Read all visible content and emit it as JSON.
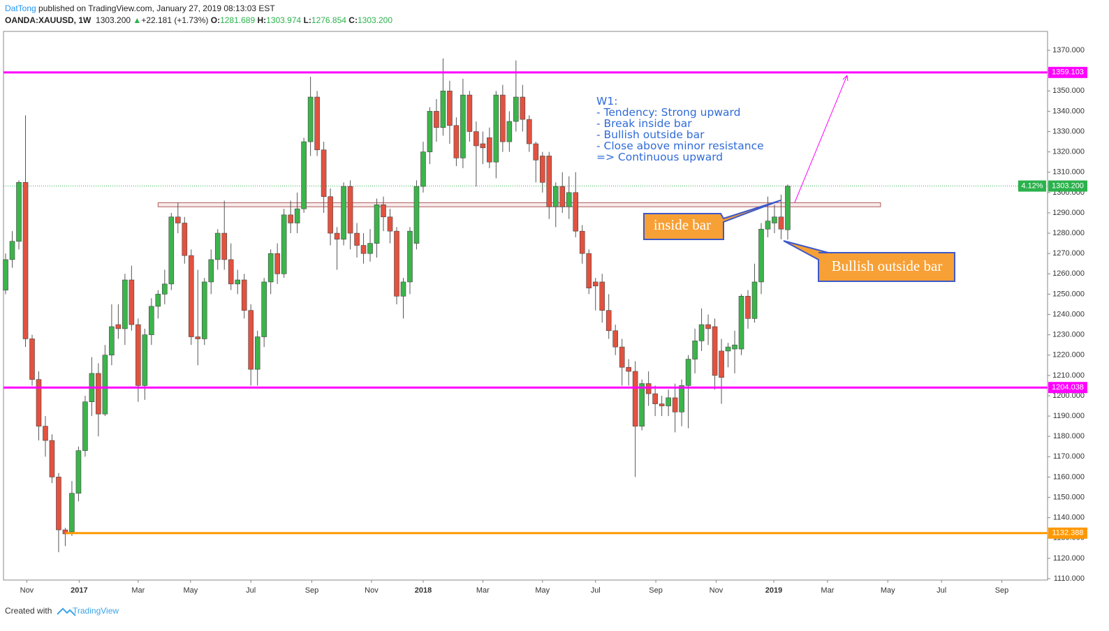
{
  "header": {
    "author": "DatTong",
    "published": "published on TradingView.com, January 27, 2019 08:13:03 EST",
    "symbol": "OANDA:XAUUSD, 1W",
    "last": "1303.200",
    "arrow": "▲",
    "change": "+22.181 (+1.73%)",
    "ohlc": [
      {
        "label": "O:",
        "value": "1281.689"
      },
      {
        "label": "H:",
        "value": "1303.974"
      },
      {
        "label": "L:",
        "value": "1276.854"
      },
      {
        "label": "C:",
        "value": "1303.200"
      }
    ]
  },
  "footer": {
    "text": "Created with",
    "brand": "TradingView"
  },
  "chart_data": {
    "type": "candlestick",
    "up_color": "#3cb44b",
    "down_color": "#e2523f",
    "open": [
      1252,
      1267,
      1276,
      1305,
      1228,
      1208,
      1185,
      1178,
      1160,
      1134,
      1133,
      1152,
      1173,
      1197,
      1211,
      1191,
      1220,
      1235,
      1233,
      1257,
      1235,
      1205,
      1230,
      1244,
      1250,
      1255,
      1288,
      1285,
      1269,
      1229,
      1228,
      1256,
      1267,
      1280,
      1267,
      1255,
      1257,
      1242,
      1213,
      1229,
      1256,
      1270,
      1260,
      1289,
      1285,
      1292,
      1325,
      1347,
      1321,
      1298,
      1280,
      1277,
      1303,
      1280,
      1274,
      1270,
      1275,
      1294,
      1288,
      1281,
      1249,
      1256,
      1275,
      1303,
      1320,
      1340,
      1332,
      1350,
      1333,
      1317,
      1348,
      1330,
      1324,
      1327,
      1315,
      1348,
      1325,
      1335,
      1347,
      1336,
      1324,
      1318,
      1318,
      1293,
      1303,
      1293,
      1300,
      1281,
      1270,
      1256,
      1256,
      1242,
      1232,
      1224,
      1214,
      1212,
      1185,
      1206,
      1201,
      1196,
      1195,
      1199,
      1192,
      1205,
      1218,
      1227,
      1235,
      1234,
      1222,
      1222,
      1223,
      1223,
      1249,
      1238,
      1256,
      1282,
      1285,
      1288,
      1281.689
    ],
    "high": [
      1270,
      1281,
      1306,
      1338,
      1230,
      1212,
      1190,
      1181,
      1162,
      1135,
      1158,
      1175,
      1200,
      1219,
      1216,
      1225,
      1245,
      1245,
      1260,
      1264,
      1238,
      1233,
      1248,
      1252,
      1262,
      1290,
      1295,
      1288,
      1272,
      1262,
      1258,
      1272,
      1282,
      1296,
      1275,
      1262,
      1260,
      1245,
      1232,
      1258,
      1272,
      1275,
      1292,
      1296,
      1300,
      1327,
      1357,
      1350,
      1325,
      1302,
      1283,
      1305,
      1306,
      1285,
      1280,
      1282,
      1297,
      1298,
      1292,
      1283,
      1258,
      1283,
      1306,
      1325,
      1342,
      1346,
      1366,
      1355,
      1337,
      1356,
      1350,
      1335,
      1330,
      1332,
      1350,
      1353,
      1340,
      1365,
      1353,
      1338,
      1325,
      1320,
      1320,
      1305,
      1310,
      1308,
      1310,
      1284,
      1272,
      1258,
      1260,
      1250,
      1235,
      1228,
      1218,
      1217,
      1208,
      1212,
      1205,
      1200,
      1203,
      1206,
      1208,
      1220,
      1233,
      1243,
      1240,
      1238,
      1228,
      1226,
      1232,
      1250,
      1252,
      1265,
      1285,
      1298,
      1294,
      1299,
      1303.974
    ],
    "low": [
      1250,
      1263,
      1272,
      1224,
      1205,
      1178,
      1170,
      1157,
      1123,
      1126,
      1131,
      1148,
      1170,
      1190,
      1180,
      1190,
      1215,
      1228,
      1225,
      1232,
      1197,
      1198,
      1225,
      1238,
      1245,
      1252,
      1280,
      1265,
      1225,
      1215,
      1225,
      1250,
      1262,
      1262,
      1252,
      1250,
      1238,
      1205,
      1205,
      1224,
      1250,
      1255,
      1258,
      1280,
      1280,
      1290,
      1318,
      1318,
      1290,
      1274,
      1262,
      1274,
      1272,
      1268,
      1265,
      1266,
      1268,
      1281,
      1275,
      1245,
      1238,
      1250,
      1272,
      1300,
      1314,
      1325,
      1328,
      1324,
      1313,
      1312,
      1325,
      1303,
      1314,
      1312,
      1307,
      1320,
      1320,
      1330,
      1330,
      1320,
      1305,
      1300,
      1287,
      1283,
      1290,
      1287,
      1278,
      1265,
      1250,
      1242,
      1236,
      1228,
      1220,
      1205,
      1205,
      1160,
      1183,
      1195,
      1190,
      1190,
      1190,
      1182,
      1185,
      1184,
      1211,
      1222,
      1225,
      1203,
      1196,
      1214,
      1211,
      1220,
      1233,
      1236,
      1250,
      1278,
      1280,
      1277,
      1276.854
    ],
    "close": [
      1267,
      1276,
      1305,
      1228,
      1208,
      1185,
      1178,
      1160,
      1134,
      1132,
      1152,
      1173,
      1197,
      1211,
      1191,
      1220,
      1234,
      1233,
      1257,
      1235,
      1205,
      1230,
      1244,
      1250,
      1255,
      1288,
      1285,
      1269,
      1229,
      1228,
      1256,
      1267,
      1280,
      1267,
      1255,
      1257,
      1242,
      1213,
      1229,
      1256,
      1270,
      1260,
      1289,
      1285,
      1292,
      1325,
      1347,
      1321,
      1298,
      1280,
      1277,
      1303,
      1280,
      1274,
      1270,
      1275,
      1294,
      1288,
      1281,
      1249,
      1256,
      1281,
      1303,
      1320,
      1340,
      1332,
      1350,
      1333,
      1317,
      1348,
      1330,
      1323,
      1322,
      1315,
      1348,
      1325,
      1335,
      1347,
      1336,
      1324,
      1316,
      1305,
      1293,
      1303,
      1293,
      1300,
      1281,
      1270,
      1253,
      1254,
      1242,
      1232,
      1224,
      1214,
      1212,
      1185,
      1206,
      1201,
      1196,
      1195,
      1199,
      1192,
      1205,
      1218,
      1227,
      1235,
      1233,
      1210,
      1209,
      1224,
      1225,
      1249,
      1238,
      1256,
      1282,
      1286,
      1288,
      1282,
      1303.2
    ],
    "xlim": [
      -0.32,
      157.2
    ],
    "xticks": [
      {
        "value": 3.2,
        "label": "Nov"
      },
      {
        "value": 11.1,
        "label": "2017"
      },
      {
        "value": 20,
        "label": "Mar"
      },
      {
        "value": 27.9,
        "label": "May"
      },
      {
        "value": 37,
        "label": "Jul"
      },
      {
        "value": 46.2,
        "label": "Sep"
      },
      {
        "value": 55.2,
        "label": "Nov"
      },
      {
        "value": 63,
        "label": "2018"
      },
      {
        "value": 72,
        "label": "Mar"
      },
      {
        "value": 81,
        "label": "May"
      },
      {
        "value": 89,
        "label": "Jul"
      },
      {
        "value": 98.1,
        "label": "Sep"
      },
      {
        "value": 107.2,
        "label": "Nov"
      },
      {
        "value": 115.9,
        "label": "2019"
      },
      {
        "value": 124,
        "label": "Mar"
      },
      {
        "value": 133.1,
        "label": "May"
      },
      {
        "value": 141.2,
        "label": "Jul"
      },
      {
        "value": 150.3,
        "label": "Sep"
      }
    ],
    "ylim": [
      1109.3,
      1379.3
    ],
    "yticks": [
      {
        "value": 1110,
        "label": "1110.000"
      },
      {
        "value": 1120,
        "label": "1120.000"
      },
      {
        "value": 1130,
        "label": "1130.000"
      },
      {
        "value": 1140,
        "label": "1140.000"
      },
      {
        "value": 1150,
        "label": "1150.000"
      },
      {
        "value": 1160,
        "label": "1160.000"
      },
      {
        "value": 1170,
        "label": "1170.000"
      },
      {
        "value": 1180,
        "label": "1180.000"
      },
      {
        "value": 1190,
        "label": "1190.000"
      },
      {
        "value": 1200,
        "label": "1200.000"
      },
      {
        "value": 1210,
        "label": "1210.000"
      },
      {
        "value": 1220,
        "label": "1220.000"
      },
      {
        "value": 1230,
        "label": "1230.000"
      },
      {
        "value": 1240,
        "label": "1240.000"
      },
      {
        "value": 1250,
        "label": "1250.000"
      },
      {
        "value": 1260,
        "label": "1260.000"
      },
      {
        "value": 1270,
        "label": "1270.000"
      },
      {
        "value": 1280,
        "label": "1280.000"
      },
      {
        "value": 1290,
        "label": "1290.000"
      },
      {
        "value": 1300,
        "label": "1300.000"
      },
      {
        "value": 1310,
        "label": "1310.000"
      },
      {
        "value": 1320,
        "label": "1320.000"
      },
      {
        "value": 1330,
        "label": "1330.000"
      },
      {
        "value": 1340,
        "label": "1340.000"
      },
      {
        "value": 1350,
        "label": "1350.000"
      },
      {
        "value": 1360,
        "label": "1360.000"
      },
      {
        "value": 1370,
        "label": "1370.000"
      }
    ],
    "levels": [
      {
        "value": 1359.103,
        "color": "#ff00ff",
        "from": -0.32
      },
      {
        "value": 1204.038,
        "color": "#ff00ff",
        "from": -0.32
      },
      {
        "value": 1132.388,
        "color": "#ff9800",
        "from": 9
      }
    ],
    "price_line": {
      "value": 1303.2,
      "label": "1303.200",
      "change": "4.12%",
      "color": "#2bb24c"
    },
    "zone": {
      "low": 1293,
      "high": 1295,
      "x": [
        23,
        132
      ]
    },
    "note": [
      "W1:",
      "- Tendency: Strong upward",
      "- Break inside bar",
      "- Bullish outside bar",
      "- Close above minor resistance",
      "=> Continuous upward"
    ],
    "callouts": [
      "inside bar",
      "Bullish outside bar"
    ]
  }
}
